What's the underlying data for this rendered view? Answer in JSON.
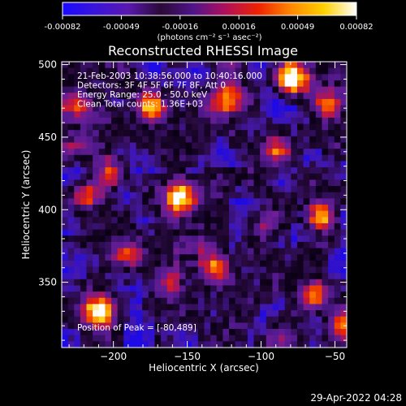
{
  "chart_data": {
    "type": "heatmap",
    "title": "Reconstructed RHESSI Image",
    "xlabel": "Heliocentric X (arcsec)",
    "ylabel": "Heliocentric Y (arcsec)",
    "xlim": [
      -235,
      -42
    ],
    "ylim": [
      305,
      502
    ],
    "x_ticks": [
      -200,
      -150,
      -100,
      -50
    ],
    "y_ticks": [
      350,
      400,
      450,
      500
    ],
    "colorbar": {
      "ticks": [
        "-0.00082",
        "-0.00049",
        "-0.00016",
        "0.00016",
        "0.00049",
        "0.00082"
      ],
      "range": [
        -0.00082,
        0.00082
      ],
      "unit_label": "(photons cm⁻² s⁻¹ asec⁻²)",
      "colors": [
        "#1a0aff",
        "#3a14d8",
        "#5a18b0",
        "#2a0a38",
        "#50148a",
        "#b0105a",
        "#ee2200",
        "#ff8800",
        "#ffd000",
        "#ffffff"
      ]
    },
    "annotations": [
      "21-Feb-2003 10:38:56.000 to 10:40:16.000",
      "Detectors: 3F 4F 5F 6F 7F 8F, Att 0",
      "Energy Range: 25.0 - 50.0 keV",
      "Clean    Total counts: 1.36E+03"
    ],
    "peak_label": "Position of Peak = [-80,489]",
    "peak": [
      -80,
      489
    ],
    "bright_regions": [
      {
        "x": -80,
        "y": 489,
        "level": 1.0
      },
      {
        "x": -210,
        "y": 330,
        "level": 0.95
      },
      {
        "x": -175,
        "y": 470,
        "level": 0.8
      },
      {
        "x": -55,
        "y": 470,
        "level": 0.75
      },
      {
        "x": -60,
        "y": 395,
        "level": 0.85
      },
      {
        "x": -120,
        "y": 475,
        "level": 0.7
      },
      {
        "x": -220,
        "y": 410,
        "level": 0.75
      },
      {
        "x": -155,
        "y": 410,
        "level": 0.75
      },
      {
        "x": -65,
        "y": 340,
        "level": 0.7
      },
      {
        "x": -200,
        "y": 425,
        "level": 0.65
      },
      {
        "x": -130,
        "y": 360,
        "level": 0.6
      },
      {
        "x": -90,
        "y": 440,
        "level": 0.55
      },
      {
        "x": -100,
        "y": 390,
        "level": 0.55
      },
      {
        "x": -160,
        "y": 350,
        "level": 0.6
      },
      {
        "x": -190,
        "y": 370,
        "level": 0.55
      },
      {
        "x": -45,
        "y": 320,
        "level": 0.6
      },
      {
        "x": -225,
        "y": 470,
        "level": 0.5
      }
    ],
    "grid": false,
    "legend": "none"
  },
  "footer": {
    "date": "29-Apr-2022 04:28"
  }
}
